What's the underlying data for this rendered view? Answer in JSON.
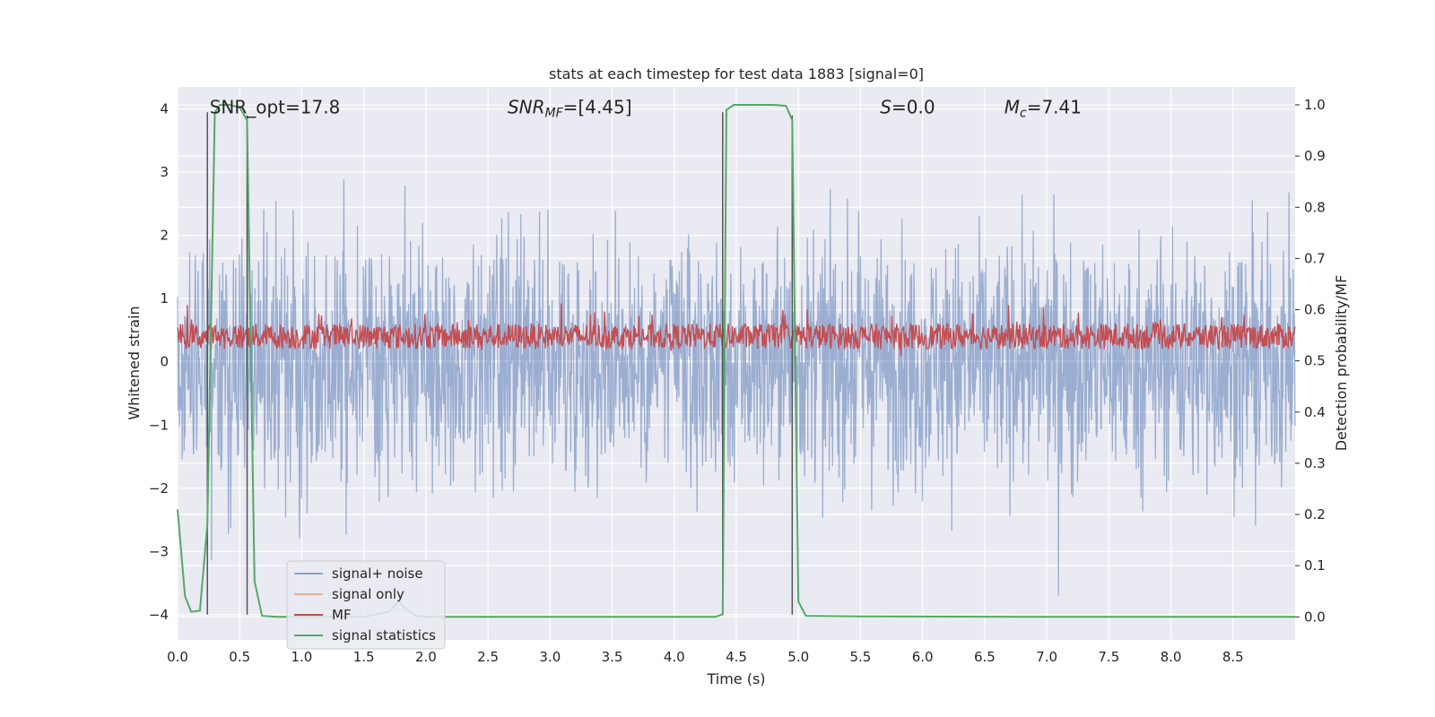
{
  "chart_data": {
    "type": "line",
    "title": "stats at each timestep for test data 1883 [signal=0]",
    "xlabel": "Time (s)",
    "ylabel_left": "Whitened strain",
    "ylabel_right": "Detection probability/MF",
    "xlim": [
      0,
      9.0
    ],
    "ylim_left": [
      -4.4,
      4.35
    ],
    "ylim_right": [
      -0.045,
      1.035
    ],
    "xticks": [
      "0.0",
      "0.5",
      "1.0",
      "1.5",
      "2.0",
      "2.5",
      "3.0",
      "3.5",
      "4.0",
      "4.5",
      "5.0",
      "5.5",
      "6.0",
      "6.5",
      "7.0",
      "7.5",
      "8.0",
      "8.5"
    ],
    "yticks_left": [
      "−4",
      "−3",
      "−2",
      "−1",
      "0",
      "1",
      "2",
      "3",
      "4"
    ],
    "yticks_right": [
      "0.0",
      "0.1",
      "0.2",
      "0.3",
      "0.4",
      "0.5",
      "0.6",
      "0.7",
      "0.8",
      "0.9",
      "1.0"
    ],
    "grid": true,
    "annotations": [
      {
        "text": "SNR_opt=17.8",
        "x": 0.2,
        "y": 4.0
      },
      {
        "text": "SNR_MF=[4.45]",
        "x": 2.6,
        "y": 4.0
      },
      {
        "text": "S=0.0",
        "x": 5.6,
        "y": 4.0
      },
      {
        "text": "M_c=7.41",
        "x": 6.6,
        "y": 4.0
      }
    ],
    "vertical_lines": [
      {
        "x": 0.24,
        "y_from": -4.0,
        "y_to": 3.95
      },
      {
        "x": 0.56,
        "y_from": -4.0,
        "y_to": 3.9
      },
      {
        "x": 4.39,
        "y_from": -4.0,
        "y_to": 3.95
      },
      {
        "x": 4.95,
        "y_from": -4.0,
        "y_to": 3.9
      }
    ],
    "series": [
      {
        "name": "signal+ noise",
        "axis": "left",
        "color": "#4c72b0",
        "alpha": 0.5,
        "description": "whitened strain noise, roughly +/-2 with spikes to +/-4",
        "envelope": {
          "typical_max": 2.0,
          "typical_min": -2.0,
          "peak_max": 3.9,
          "peak_min": -4.0
        }
      },
      {
        "name": "signal only",
        "axis": "left",
        "color": "#dd8452",
        "alpha": 0.5,
        "values": []
      },
      {
        "name": "MF",
        "axis": "right",
        "color": "#c44e52",
        "description": "matched filter output fluctuating about 0.55",
        "range": [
          0.51,
          0.63
        ]
      },
      {
        "name": "signal statistics",
        "axis": "right",
        "color": "#55a868",
        "x": [
          0.0,
          0.06,
          0.11,
          0.18,
          0.24,
          0.3,
          0.34,
          0.42,
          0.5,
          0.56,
          0.62,
          0.68,
          0.8,
          1.0,
          1.5,
          1.7,
          1.78,
          1.84,
          1.92,
          2.0,
          3.0,
          4.0,
          4.33,
          4.39,
          4.42,
          4.48,
          4.6,
          4.8,
          4.9,
          4.95,
          5.0,
          5.06,
          5.5,
          7.0,
          9.0
        ],
        "y": [
          0.21,
          0.04,
          0.01,
          0.012,
          0.18,
          0.985,
          1.0,
          1.0,
          0.995,
          0.97,
          0.07,
          0.002,
          0.0,
          0.0,
          0.0,
          0.01,
          0.03,
          0.015,
          0.002,
          0.0,
          0.0,
          0.0,
          0.0,
          0.005,
          0.99,
          1.0,
          1.0,
          1.0,
          0.998,
          0.97,
          0.03,
          0.002,
          0.001,
          0.0,
          0.0
        ]
      }
    ],
    "legend": {
      "position": "lower-left",
      "entries": [
        {
          "label": "signal+ noise",
          "color": "#4c72b0",
          "alpha": 0.6
        },
        {
          "label": "signal only",
          "color": "#dd8452",
          "alpha": 0.6
        },
        {
          "label": "MF",
          "color": "#c44e52",
          "alpha": 1
        },
        {
          "label": "signal statistics",
          "color": "#55a868",
          "alpha": 1
        }
      ]
    }
  }
}
